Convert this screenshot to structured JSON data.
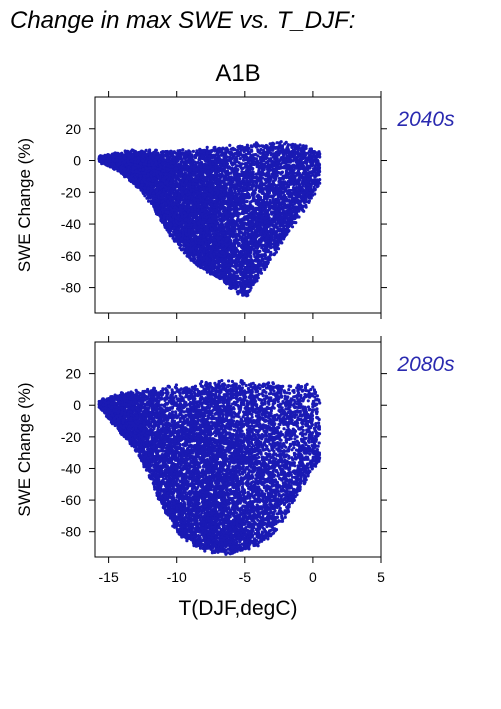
{
  "figure": {
    "title": "Change in max SWE vs. T_DJF:",
    "scenario": "A1B",
    "xlabel": "T(DJF,degC)",
    "ylabel": "SWE Change (%)",
    "point_color": "#1a1ab4",
    "label_color": "#2a2ab0"
  },
  "chart_data": [
    {
      "type": "scatter",
      "panel_label": "2040s",
      "xlabel": "T(DJF,degC)",
      "ylabel": "SWE Change (%)",
      "xlim": [
        -16,
        5
      ],
      "ylim": [
        -96,
        40
      ],
      "xticks": [
        -15,
        -10,
        -5,
        0,
        5
      ],
      "yticks": [
        20,
        0,
        -20,
        -40,
        -60,
        -80
      ],
      "grid": false,
      "envelope": {
        "x": [
          -15.7,
          -15,
          -14,
          -13,
          -12,
          -11,
          -10,
          -9,
          -8,
          -7,
          -6,
          -5,
          -4,
          -3,
          -2,
          -1,
          0,
          0.5
        ],
        "upper": [
          2,
          3,
          5,
          6,
          6,
          6,
          6,
          6,
          7,
          8,
          9,
          10,
          11,
          12,
          11,
          10,
          8,
          6
        ],
        "lower": [
          0,
          -3,
          -8,
          -15,
          -25,
          -40,
          -52,
          -62,
          -68,
          -74,
          -80,
          -87,
          -74,
          -62,
          -48,
          -35,
          -22,
          -15
        ]
      }
    },
    {
      "type": "scatter",
      "panel_label": "2080s",
      "xlabel": "T(DJF,degC)",
      "ylabel": "SWE Change (%)",
      "xlim": [
        -16,
        5
      ],
      "ylim": [
        -96,
        40
      ],
      "xticks": [
        -15,
        -10,
        -5,
        0,
        5
      ],
      "yticks": [
        20,
        0,
        -20,
        -40,
        -60,
        -80
      ],
      "grid": false,
      "envelope": {
        "x": [
          -15.7,
          -15,
          -14,
          -13,
          -12,
          -11,
          -10,
          -9,
          -8,
          -7,
          -6,
          -5,
          -4,
          -3,
          -2,
          -1,
          0,
          0.5
        ],
        "upper": [
          2,
          5,
          8,
          9,
          10,
          11,
          12,
          13,
          14,
          15,
          15,
          15,
          15,
          15,
          14,
          13,
          12,
          10
        ],
        "lower": [
          0,
          -8,
          -18,
          -28,
          -45,
          -65,
          -80,
          -87,
          -91,
          -93,
          -94,
          -92,
          -88,
          -82,
          -70,
          -55,
          -40,
          -35
        ]
      }
    }
  ]
}
